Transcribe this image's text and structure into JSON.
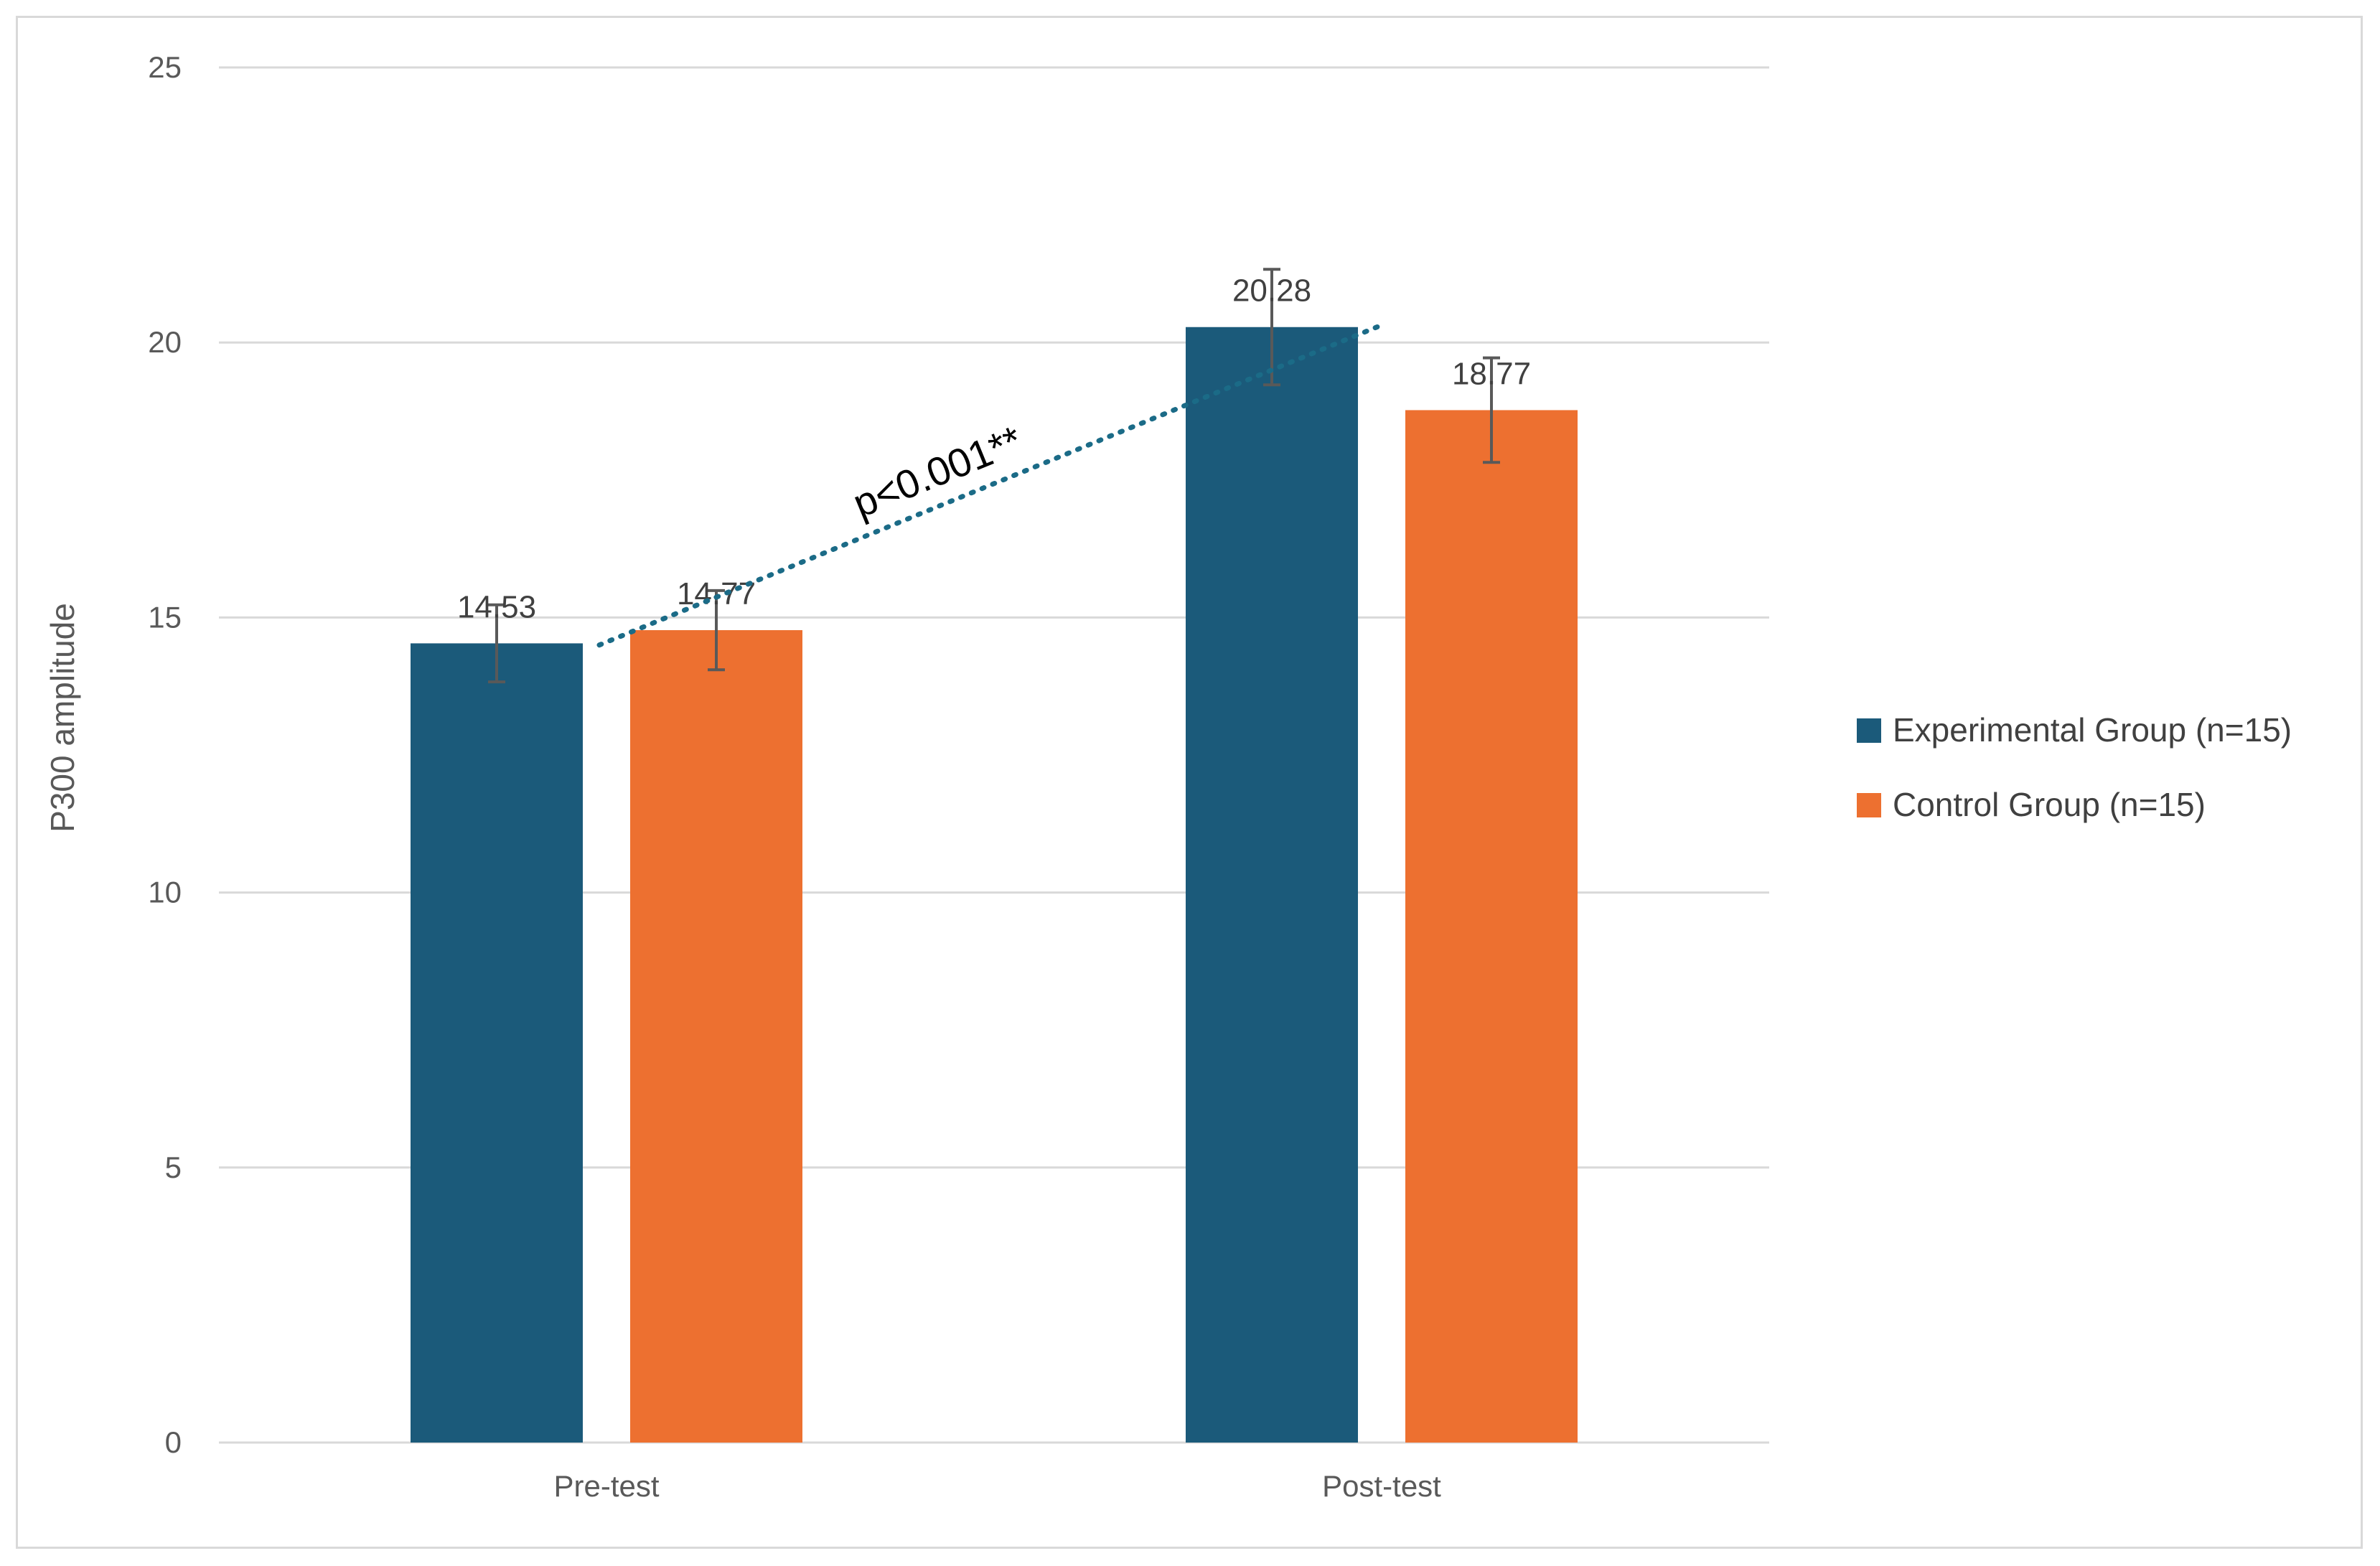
{
  "chart_data": {
    "type": "bar",
    "title": "",
    "xlabel": "",
    "ylabel": "P300 amplitude",
    "ylim": [
      0,
      25
    ],
    "yticks": [
      0,
      5,
      10,
      15,
      20,
      25
    ],
    "grid": true,
    "legend_position": "right",
    "categories": [
      "Pre-test",
      "Post-test"
    ],
    "series": [
      {
        "name": "Experimental Group (n=15)",
        "color": "#1b5a7a",
        "values": [
          14.53,
          20.28
        ],
        "labels": [
          "14.53",
          "20.28"
        ],
        "error": [
          0.7,
          1.05
        ]
      },
      {
        "name": "Control Group (n=15)",
        "color": "#ed7030",
        "values": [
          14.77,
          18.77
        ],
        "labels": [
          "14.77",
          "18.77"
        ],
        "error": [
          0.72,
          0.95
        ]
      }
    ],
    "annotation": {
      "text": "p<0.001**",
      "from": {
        "category": "Pre-test",
        "y": 14.5
      },
      "to": {
        "category": "Post-test",
        "y": 20.3
      },
      "line_color": "#1b6b87",
      "line_style": "dotted"
    }
  }
}
